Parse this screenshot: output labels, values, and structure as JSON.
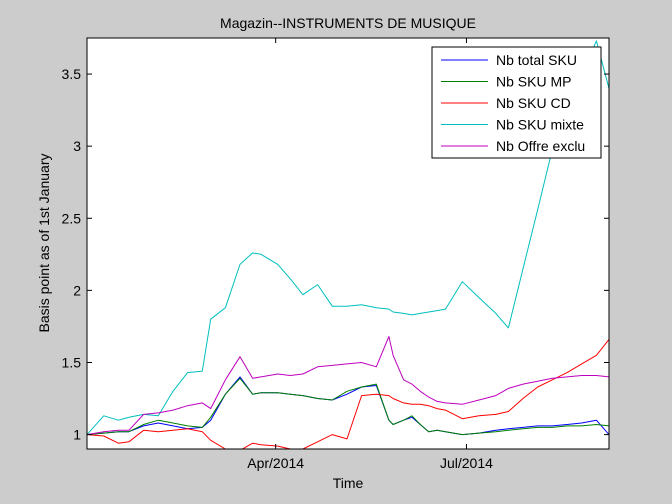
{
  "chart_data": {
    "type": "line",
    "title": "Magazin--INSTRUMENTS DE MUSIQUE",
    "xlabel": "Time",
    "ylabel": "Basis point as of 1st January",
    "xlim": [
      "2014-01-01",
      "2014-09-07"
    ],
    "ylim": [
      0.9,
      3.75
    ],
    "x_ticks": [
      {
        "date": "2014-04-01",
        "label": "Apr/2014"
      },
      {
        "date": "2014-07-01",
        "label": "Jul/2014"
      }
    ],
    "y_ticks": [
      {
        "value": 1,
        "label": "1"
      },
      {
        "value": 1.5,
        "label": "1.5"
      },
      {
        "value": 2,
        "label": "2"
      },
      {
        "value": 2.5,
        "label": "2.5"
      },
      {
        "value": 3,
        "label": "3"
      },
      {
        "value": 3.5,
        "label": "3.5"
      }
    ],
    "grid": false,
    "legend_position": "top-right",
    "x": [
      "2014-01-01",
      "2014-01-09",
      "2014-01-16",
      "2014-01-21",
      "2014-01-28",
      "2014-02-04",
      "2014-02-11",
      "2014-02-18",
      "2014-02-25",
      "2014-03-01",
      "2014-03-08",
      "2014-03-15",
      "2014-03-21",
      "2014-03-25",
      "2014-04-02",
      "2014-04-08",
      "2014-04-14",
      "2014-04-21",
      "2014-04-28",
      "2014-05-05",
      "2014-05-12",
      "2014-05-19",
      "2014-05-25",
      "2014-05-27",
      "2014-06-01",
      "2014-06-05",
      "2014-06-09",
      "2014-06-13",
      "2014-06-17",
      "2014-06-21",
      "2014-06-29",
      "2014-07-07",
      "2014-07-15",
      "2014-07-21",
      "2014-07-28",
      "2014-08-04",
      "2014-08-11",
      "2014-08-18",
      "2014-08-25",
      "2014-09-01",
      "2014-09-07"
    ],
    "series": [
      {
        "name": "Nb total SKU",
        "color": "#0000ff",
        "values": [
          1,
          1.01,
          1.02,
          1.02,
          1.06,
          1.08,
          1.06,
          1.04,
          1.05,
          1.1,
          1.28,
          1.4,
          1.28,
          1.29,
          1.29,
          1.28,
          1.27,
          1.25,
          1.24,
          1.28,
          1.33,
          1.34,
          1.1,
          1.07,
          1.1,
          1.12,
          1.07,
          1.02,
          1.03,
          1.02,
          1.0,
          1.01,
          1.03,
          1.04,
          1.05,
          1.06,
          1.06,
          1.07,
          1.08,
          1.1,
          1.0
        ]
      },
      {
        "name": "Nb SKU MP",
        "color": "#007f00",
        "values": [
          1,
          1.01,
          1.02,
          1.02,
          1.07,
          1.1,
          1.08,
          1.06,
          1.05,
          1.12,
          1.28,
          1.39,
          1.28,
          1.29,
          1.29,
          1.28,
          1.27,
          1.25,
          1.24,
          1.3,
          1.33,
          1.35,
          1.1,
          1.07,
          1.1,
          1.13,
          1.07,
          1.02,
          1.03,
          1.02,
          1.0,
          1.01,
          1.02,
          1.03,
          1.04,
          1.05,
          1.05,
          1.06,
          1.06,
          1.07,
          1.06
        ]
      },
      {
        "name": "Nb SKU CD",
        "color": "#ff0000",
        "values": [
          1,
          0.99,
          0.94,
          0.95,
          1.03,
          1.02,
          1.03,
          1.04,
          1.02,
          0.96,
          0.9,
          0.89,
          0.94,
          0.93,
          0.92,
          0.9,
          0.9,
          0.95,
          1.0,
          0.97,
          1.27,
          1.28,
          1.27,
          1.25,
          1.22,
          1.21,
          1.21,
          1.2,
          1.18,
          1.17,
          1.11,
          1.13,
          1.14,
          1.16,
          1.25,
          1.33,
          1.38,
          1.43,
          1.49,
          1.55,
          1.66
        ]
      },
      {
        "name": "Nb SKU mixte",
        "color": "#00bfbf",
        "values": [
          1,
          1.13,
          1.1,
          1.12,
          1.14,
          1.13,
          1.3,
          1.43,
          1.44,
          1.8,
          1.88,
          2.18,
          2.26,
          2.25,
          2.18,
          2.08,
          1.97,
          2.04,
          1.89,
          1.89,
          1.9,
          1.88,
          1.87,
          1.85,
          1.84,
          1.83,
          1.84,
          1.85,
          1.86,
          1.87,
          2.06,
          1.95,
          1.84,
          1.74,
          2.15,
          2.56,
          2.98,
          3.4,
          3.5,
          3.73,
          3.4
        ]
      },
      {
        "name": "Nb Offre exclu",
        "color": "#bf00bf",
        "values": [
          1,
          1.02,
          1.03,
          1.03,
          1.14,
          1.15,
          1.17,
          1.2,
          1.22,
          1.18,
          1.38,
          1.54,
          1.39,
          1.4,
          1.42,
          1.41,
          1.42,
          1.47,
          1.48,
          1.49,
          1.5,
          1.47,
          1.68,
          1.55,
          1.38,
          1.35,
          1.3,
          1.26,
          1.23,
          1.22,
          1.21,
          1.24,
          1.27,
          1.32,
          1.35,
          1.37,
          1.39,
          1.4,
          1.41,
          1.41,
          1.4
        ]
      }
    ]
  }
}
